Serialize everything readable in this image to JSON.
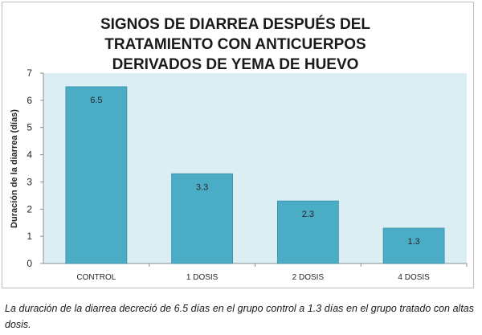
{
  "chart_data": {
    "type": "bar",
    "title_lines": [
      "SIGNOS DE DIARREA DESPUÉS DEL",
      "TRATAMIENTO CON ANTICUERPOS",
      "DERIVADOS DE YEMA DE HUEVO"
    ],
    "ylabel": "Duración de la diarrea (días)",
    "xlabel": "",
    "categories": [
      "CONTROL",
      "1 DOSIS",
      "2 DOSIS",
      "4 DOSIS"
    ],
    "values": [
      6.5,
      3.3,
      2.3,
      1.3
    ],
    "data_labels": [
      "6.5",
      "3.3",
      "2.3",
      "1.3"
    ],
    "ylim": [
      0,
      7
    ],
    "yticks": [
      "0",
      "1",
      "2",
      "3",
      "4",
      "5",
      "6",
      "7"
    ],
    "grid": false,
    "legend": "none",
    "colors": {
      "bar": "#4bacc6",
      "bar_edge": "#3a8ea6",
      "plot_background": "#dbeef3"
    }
  },
  "caption": "La duración de la diarrea decreció de 6.5 días en el grupo control a 1.3 días en el grupo tratado con altas dosis."
}
